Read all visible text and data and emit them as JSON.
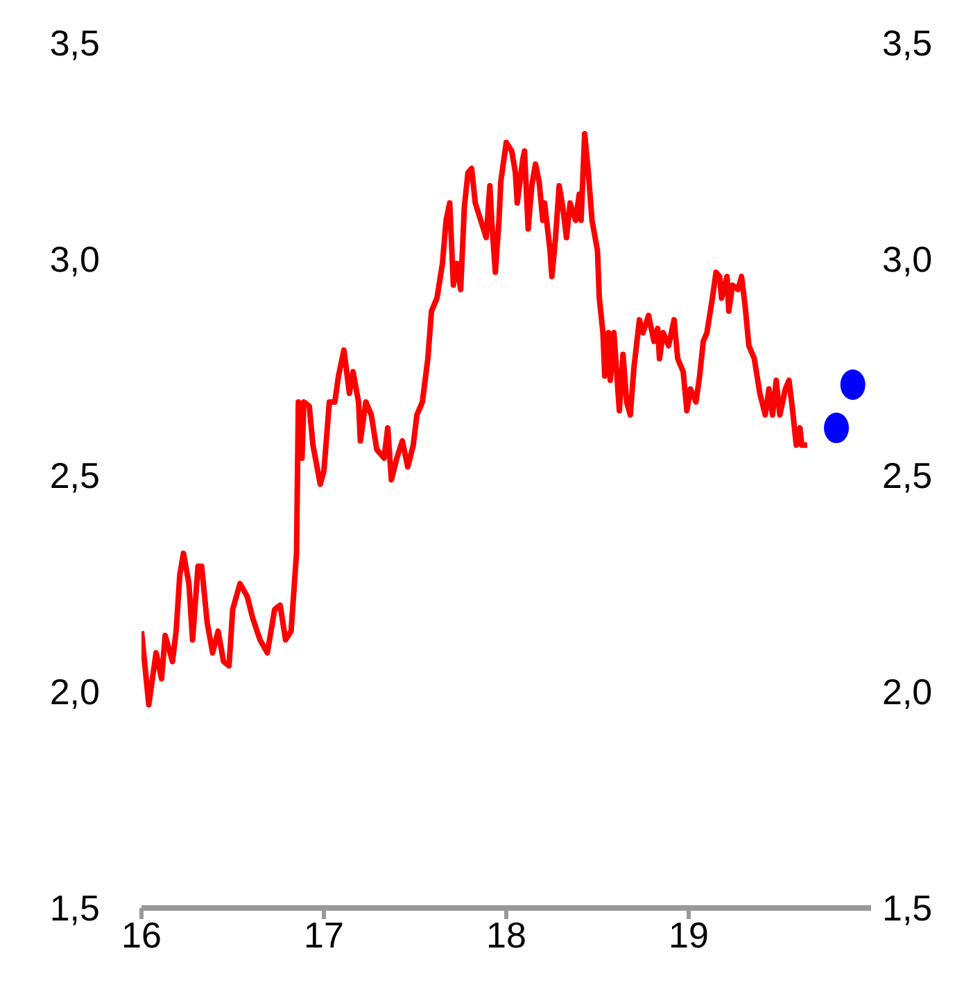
{
  "chart_data": {
    "type": "line",
    "xlim": [
      16,
      20
    ],
    "xticks": [
      16,
      17,
      18,
      19
    ],
    "ylim": [
      1.5,
      3.5
    ],
    "yticks": [
      {
        "value": 1.5,
        "label": "1,5"
      },
      {
        "value": 2.0,
        "label": "2,0"
      },
      {
        "value": 2.5,
        "label": "2,5"
      },
      {
        "value": 3.0,
        "label": "3,0"
      },
      {
        "value": 3.5,
        "label": "3,5"
      }
    ],
    "y2lim": [
      1.5,
      3.5
    ],
    "y2ticks": [
      {
        "value": 1.5,
        "label": "1,5"
      },
      {
        "value": 2.0,
        "label": "2,0"
      },
      {
        "value": 2.5,
        "label": "2,5"
      },
      {
        "value": 3.0,
        "label": "3,0"
      },
      {
        "value": 3.5,
        "label": "3,5"
      }
    ],
    "grid": false,
    "legend": false,
    "series": [
      {
        "type": "line",
        "color": "#ff0000",
        "x": [
          16.0,
          16.04,
          16.08,
          16.11,
          16.13,
          16.17,
          16.19,
          16.21,
          16.23,
          16.26,
          16.28,
          16.31,
          16.33,
          16.36,
          16.39,
          16.42,
          16.45,
          16.48,
          16.5,
          16.54,
          16.58,
          16.61,
          16.65,
          16.69,
          16.73,
          16.76,
          16.79,
          16.82,
          16.85,
          16.86,
          16.88,
          16.89,
          16.92,
          16.94,
          16.98,
          17.0,
          17.03,
          17.06,
          17.08,
          17.11,
          17.14,
          17.16,
          17.19,
          17.2,
          17.23,
          17.26,
          17.29,
          17.33,
          17.35,
          17.37,
          17.4,
          17.43,
          17.46,
          17.49,
          17.51,
          17.54,
          17.57,
          17.59,
          17.62,
          17.65,
          17.67,
          17.69,
          17.71,
          17.73,
          17.75,
          17.77,
          17.79,
          17.81,
          17.83,
          17.86,
          17.89,
          17.91,
          17.92,
          17.94,
          17.96,
          17.97,
          18.0,
          18.03,
          18.05,
          18.06,
          18.09,
          18.1,
          18.12,
          18.14,
          18.16,
          18.18,
          18.2,
          18.21,
          18.24,
          18.25,
          18.27,
          18.29,
          18.31,
          18.33,
          18.35,
          18.38,
          18.4,
          18.41,
          18.43,
          18.45,
          18.47,
          18.5,
          18.51,
          18.53,
          18.54,
          18.56,
          18.57,
          18.59,
          18.62,
          18.64,
          18.66,
          18.68,
          18.7,
          18.73,
          18.75,
          18.78,
          18.81,
          18.83,
          18.84,
          18.86,
          18.89,
          18.92,
          18.94,
          18.97,
          18.99,
          19.01,
          19.04,
          19.06,
          19.08,
          19.1,
          19.13,
          19.15,
          19.17,
          19.18,
          19.21,
          19.22,
          19.24,
          19.27,
          19.29,
          19.31,
          19.33,
          19.36,
          19.39,
          19.42,
          19.44,
          19.46,
          19.48,
          19.5,
          19.53,
          19.55,
          19.57,
          19.59,
          19.61,
          19.62,
          19.65
        ],
        "values": [
          2.14,
          1.97,
          2.09,
          2.03,
          2.13,
          2.07,
          2.14,
          2.27,
          2.32,
          2.25,
          2.12,
          2.29,
          2.29,
          2.16,
          2.09,
          2.14,
          2.07,
          2.06,
          2.19,
          2.25,
          2.22,
          2.17,
          2.12,
          2.09,
          2.19,
          2.2,
          2.12,
          2.14,
          2.32,
          2.67,
          2.54,
          2.67,
          2.66,
          2.57,
          2.48,
          2.51,
          2.67,
          2.67,
          2.73,
          2.79,
          2.69,
          2.74,
          2.67,
          2.58,
          2.67,
          2.64,
          2.56,
          2.54,
          2.61,
          2.49,
          2.54,
          2.58,
          2.52,
          2.57,
          2.64,
          2.67,
          2.77,
          2.88,
          2.91,
          2.99,
          3.09,
          3.13,
          2.94,
          2.99,
          2.93,
          3.12,
          3.2,
          3.21,
          3.13,
          3.09,
          3.05,
          3.17,
          3.09,
          2.97,
          3.09,
          3.18,
          3.27,
          3.25,
          3.2,
          3.13,
          3.23,
          3.25,
          3.07,
          3.17,
          3.22,
          3.18,
          3.09,
          3.13,
          3.02,
          2.96,
          3.05,
          3.17,
          3.12,
          3.05,
          3.13,
          3.09,
          3.15,
          3.09,
          3.29,
          3.2,
          3.09,
          3.02,
          2.91,
          2.83,
          2.73,
          2.83,
          2.72,
          2.83,
          2.65,
          2.78,
          2.67,
          2.64,
          2.75,
          2.86,
          2.83,
          2.87,
          2.81,
          2.84,
          2.77,
          2.83,
          2.8,
          2.86,
          2.77,
          2.74,
          2.65,
          2.7,
          2.67,
          2.73,
          2.81,
          2.83,
          2.91,
          2.97,
          2.96,
          2.91,
          2.96,
          2.88,
          2.94,
          2.93,
          2.96,
          2.89,
          2.8,
          2.77,
          2.69,
          2.64,
          2.7,
          2.64,
          2.72,
          2.64,
          2.7,
          2.72,
          2.65,
          2.57,
          2.61,
          2.57,
          2.57
        ]
      },
      {
        "type": "scatter",
        "color": "#0000ff",
        "x": [
          19.81,
          19.9
        ],
        "values": [
          2.61,
          2.71
        ]
      }
    ]
  }
}
